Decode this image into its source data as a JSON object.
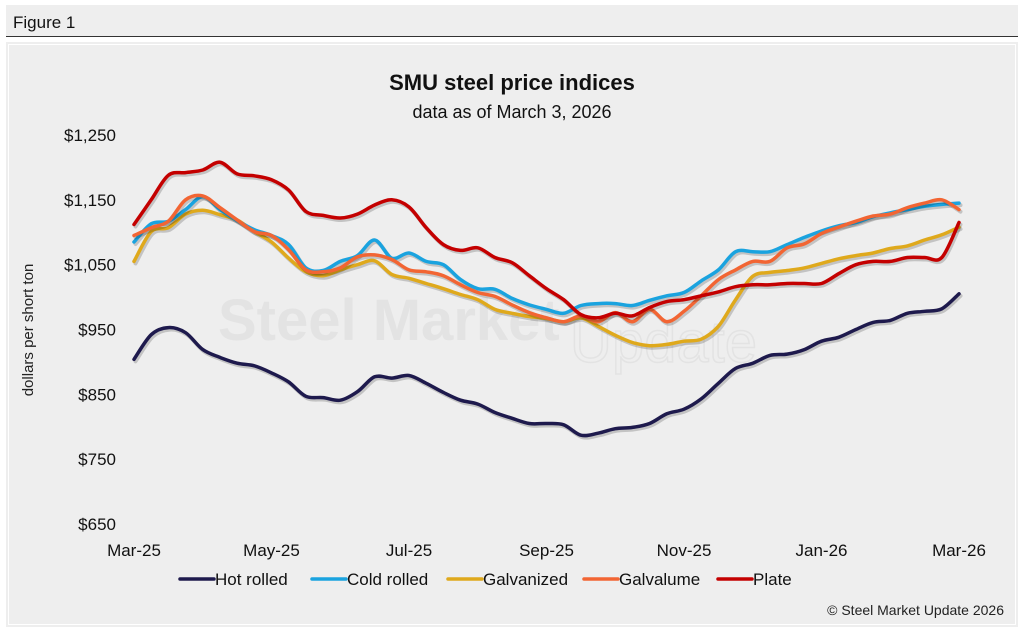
{
  "figure_label": "Figure 1",
  "watermark": {
    "part1": "Steel Market",
    "part2": "Update"
  },
  "copyright": "© Steel Market Update 2026",
  "colors": {
    "Hot rolled": "#1e1a4d",
    "Cold rolled": "#1aa3df",
    "Galvanized": "#dfa91c",
    "Galvalume": "#f26533",
    "Plate": "#c40000"
  },
  "chart_data": {
    "type": "line",
    "title": "SMU steel price indices",
    "subtitle": "data as of March 3, 2026",
    "xlabel": "",
    "ylabel": "dollars per short ton",
    "ylim": [
      650,
      1250
    ],
    "yticks": [
      1250,
      1150,
      1050,
      950,
      850,
      750,
      650
    ],
    "ytick_labels": [
      "$1,250",
      "$1,150",
      "$1,050",
      "$950",
      "$850",
      "$750",
      "$650"
    ],
    "xlim_months": [
      0,
      12
    ],
    "xticks_months": [
      0,
      2,
      4,
      6,
      8,
      10,
      12
    ],
    "xtick_labels": [
      "Mar-25",
      "May-25",
      "Jul-25",
      "Sep-25",
      "Nov-25",
      "Jan-26",
      "Mar-26"
    ],
    "grid": false,
    "legend_position": "bottom",
    "x_step_months": 0.25,
    "series": [
      {
        "name": "Hot rolled",
        "values": [
          904,
          942,
          953,
          945,
          919,
          907,
          898,
          894,
          883,
          869,
          847,
          845,
          841,
          854,
          877,
          875,
          879,
          867,
          853,
          841,
          835,
          822,
          813,
          805,
          805,
          803,
          787,
          790,
          797,
          799,
          805,
          820,
          827,
          843,
          867,
          890,
          898,
          910,
          912,
          919,
          932,
          938,
          950,
          961,
          964,
          975,
          978,
          982,
          1005
        ]
      },
      {
        "name": "Cold rolled",
        "values": [
          1085,
          1113,
          1117,
          1135,
          1155,
          1135,
          1118,
          1104,
          1095,
          1081,
          1045,
          1041,
          1055,
          1064,
          1088,
          1060,
          1068,
          1055,
          1050,
          1027,
          1013,
          1012,
          998,
          988,
          981,
          975,
          987,
          990,
          990,
          987,
          995,
          1002,
          1007,
          1025,
          1042,
          1070,
          1070,
          1070,
          1081,
          1092,
          1102,
          1110,
          1115,
          1124,
          1130,
          1135,
          1140,
          1143,
          1145
        ]
      },
      {
        "name": "Galvanized",
        "values": [
          1055,
          1101,
          1107,
          1128,
          1134,
          1127,
          1119,
          1101,
          1085,
          1060,
          1039,
          1033,
          1042,
          1050,
          1056,
          1035,
          1029,
          1021,
          1013,
          1004,
          996,
          981,
          975,
          970,
          967,
          962,
          968,
          955,
          941,
          930,
          925,
          927,
          932,
          935,
          955,
          996,
          1032,
          1038,
          1041,
          1045,
          1052,
          1059,
          1064,
          1068,
          1075,
          1079,
          1088,
          1096,
          1108
        ]
      },
      {
        "name": "Galvalume",
        "values": [
          1095,
          1107,
          1117,
          1150,
          1156,
          1138,
          1119,
          1101,
          1095,
          1073,
          1042,
          1039,
          1045,
          1062,
          1065,
          1058,
          1042,
          1039,
          1033,
          1019,
          1007,
          1001,
          988,
          976,
          968,
          962,
          971,
          962,
          976,
          962,
          981,
          962,
          978,
          1002,
          1027,
          1042,
          1055,
          1055,
          1076,
          1082,
          1098,
          1108,
          1117,
          1125,
          1128,
          1138,
          1145,
          1150,
          1135
        ]
      },
      {
        "name": "Plate",
        "values": [
          1112,
          1150,
          1188,
          1192,
          1196,
          1208,
          1190,
          1187,
          1181,
          1165,
          1132,
          1126,
          1122,
          1128,
          1142,
          1150,
          1139,
          1107,
          1081,
          1072,
          1076,
          1061,
          1053,
          1033,
          1013,
          996,
          973,
          968,
          975,
          971,
          984,
          993,
          996,
          1002,
          1008,
          1016,
          1019,
          1019,
          1021,
          1021,
          1021,
          1036,
          1050,
          1055,
          1055,
          1061,
          1061,
          1061,
          1115
        ]
      }
    ]
  }
}
